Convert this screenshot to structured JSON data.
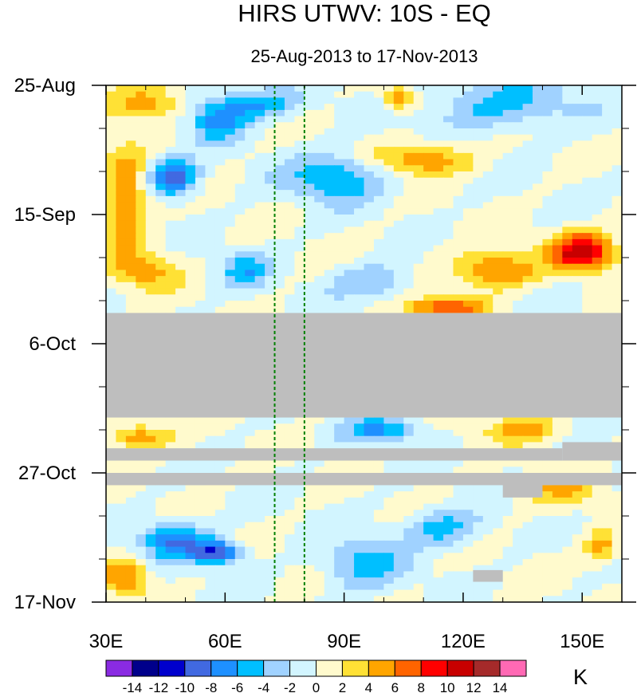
{
  "chart_data": {
    "type": "heatmap",
    "title": "HIRS UTWV: 10S - EQ",
    "subtitle": "25-Aug-2013 to 17-Nov-2013",
    "xlabel": "",
    "ylabel": "",
    "units": "K",
    "x_range": [
      30,
      160
    ],
    "y_range_days": [
      0,
      84
    ],
    "x_ticks": [
      {
        "value": 30,
        "label": "30E"
      },
      {
        "value": 60,
        "label": "60E"
      },
      {
        "value": 90,
        "label": "90E"
      },
      {
        "value": 120,
        "label": "120E"
      },
      {
        "value": 150,
        "label": "150E"
      }
    ],
    "y_ticks": [
      {
        "day": 0,
        "label": "25-Aug"
      },
      {
        "day": 21,
        "label": "15-Sep"
      },
      {
        "day": 42,
        "label": "6-Oct"
      },
      {
        "day": 63,
        "label": "27-Oct"
      },
      {
        "day": 84,
        "label": "17-Nov"
      }
    ],
    "reference_lines_lon": [
      72.5,
      80
    ],
    "colorbar": {
      "levels": [
        "-14",
        "-12",
        "-10",
        "-8",
        "-6",
        "-4",
        "-2",
        "0",
        "2",
        "4",
        "6",
        "8",
        "10",
        "12",
        "14"
      ],
      "colors": [
        "#8a2be2",
        "#00008b",
        "#0000cd",
        "#4169e1",
        "#1e90ff",
        "#00bfff",
        "#a0d2ff",
        "#d2f5ff",
        "#fffacd",
        "#ffe135",
        "#ffa500",
        "#ff6400",
        "#ff0000",
        "#c80000",
        "#a52a2a",
        "#ff69b4"
      ]
    },
    "missing_data_color": "#bebebe",
    "missing_periods": [
      {
        "lon_from": 30,
        "lon_to": 160,
        "day_from": 37,
        "day_to": 54
      },
      {
        "lon_from": 30,
        "lon_to": 145,
        "day_from": 59,
        "day_to": 61
      },
      {
        "lon_from": 145,
        "lon_to": 160,
        "day_from": 58,
        "day_to": 61
      },
      {
        "lon_from": 30,
        "lon_to": 160,
        "day_from": 63,
        "day_to": 65
      },
      {
        "lon_from": 130,
        "lon_to": 140,
        "day_from": 64,
        "day_to": 67
      },
      {
        "lon_from": 122.5,
        "lon_to": 130,
        "day_from": 78.8,
        "day_to": 80.7
      }
    ],
    "grid": false
  }
}
